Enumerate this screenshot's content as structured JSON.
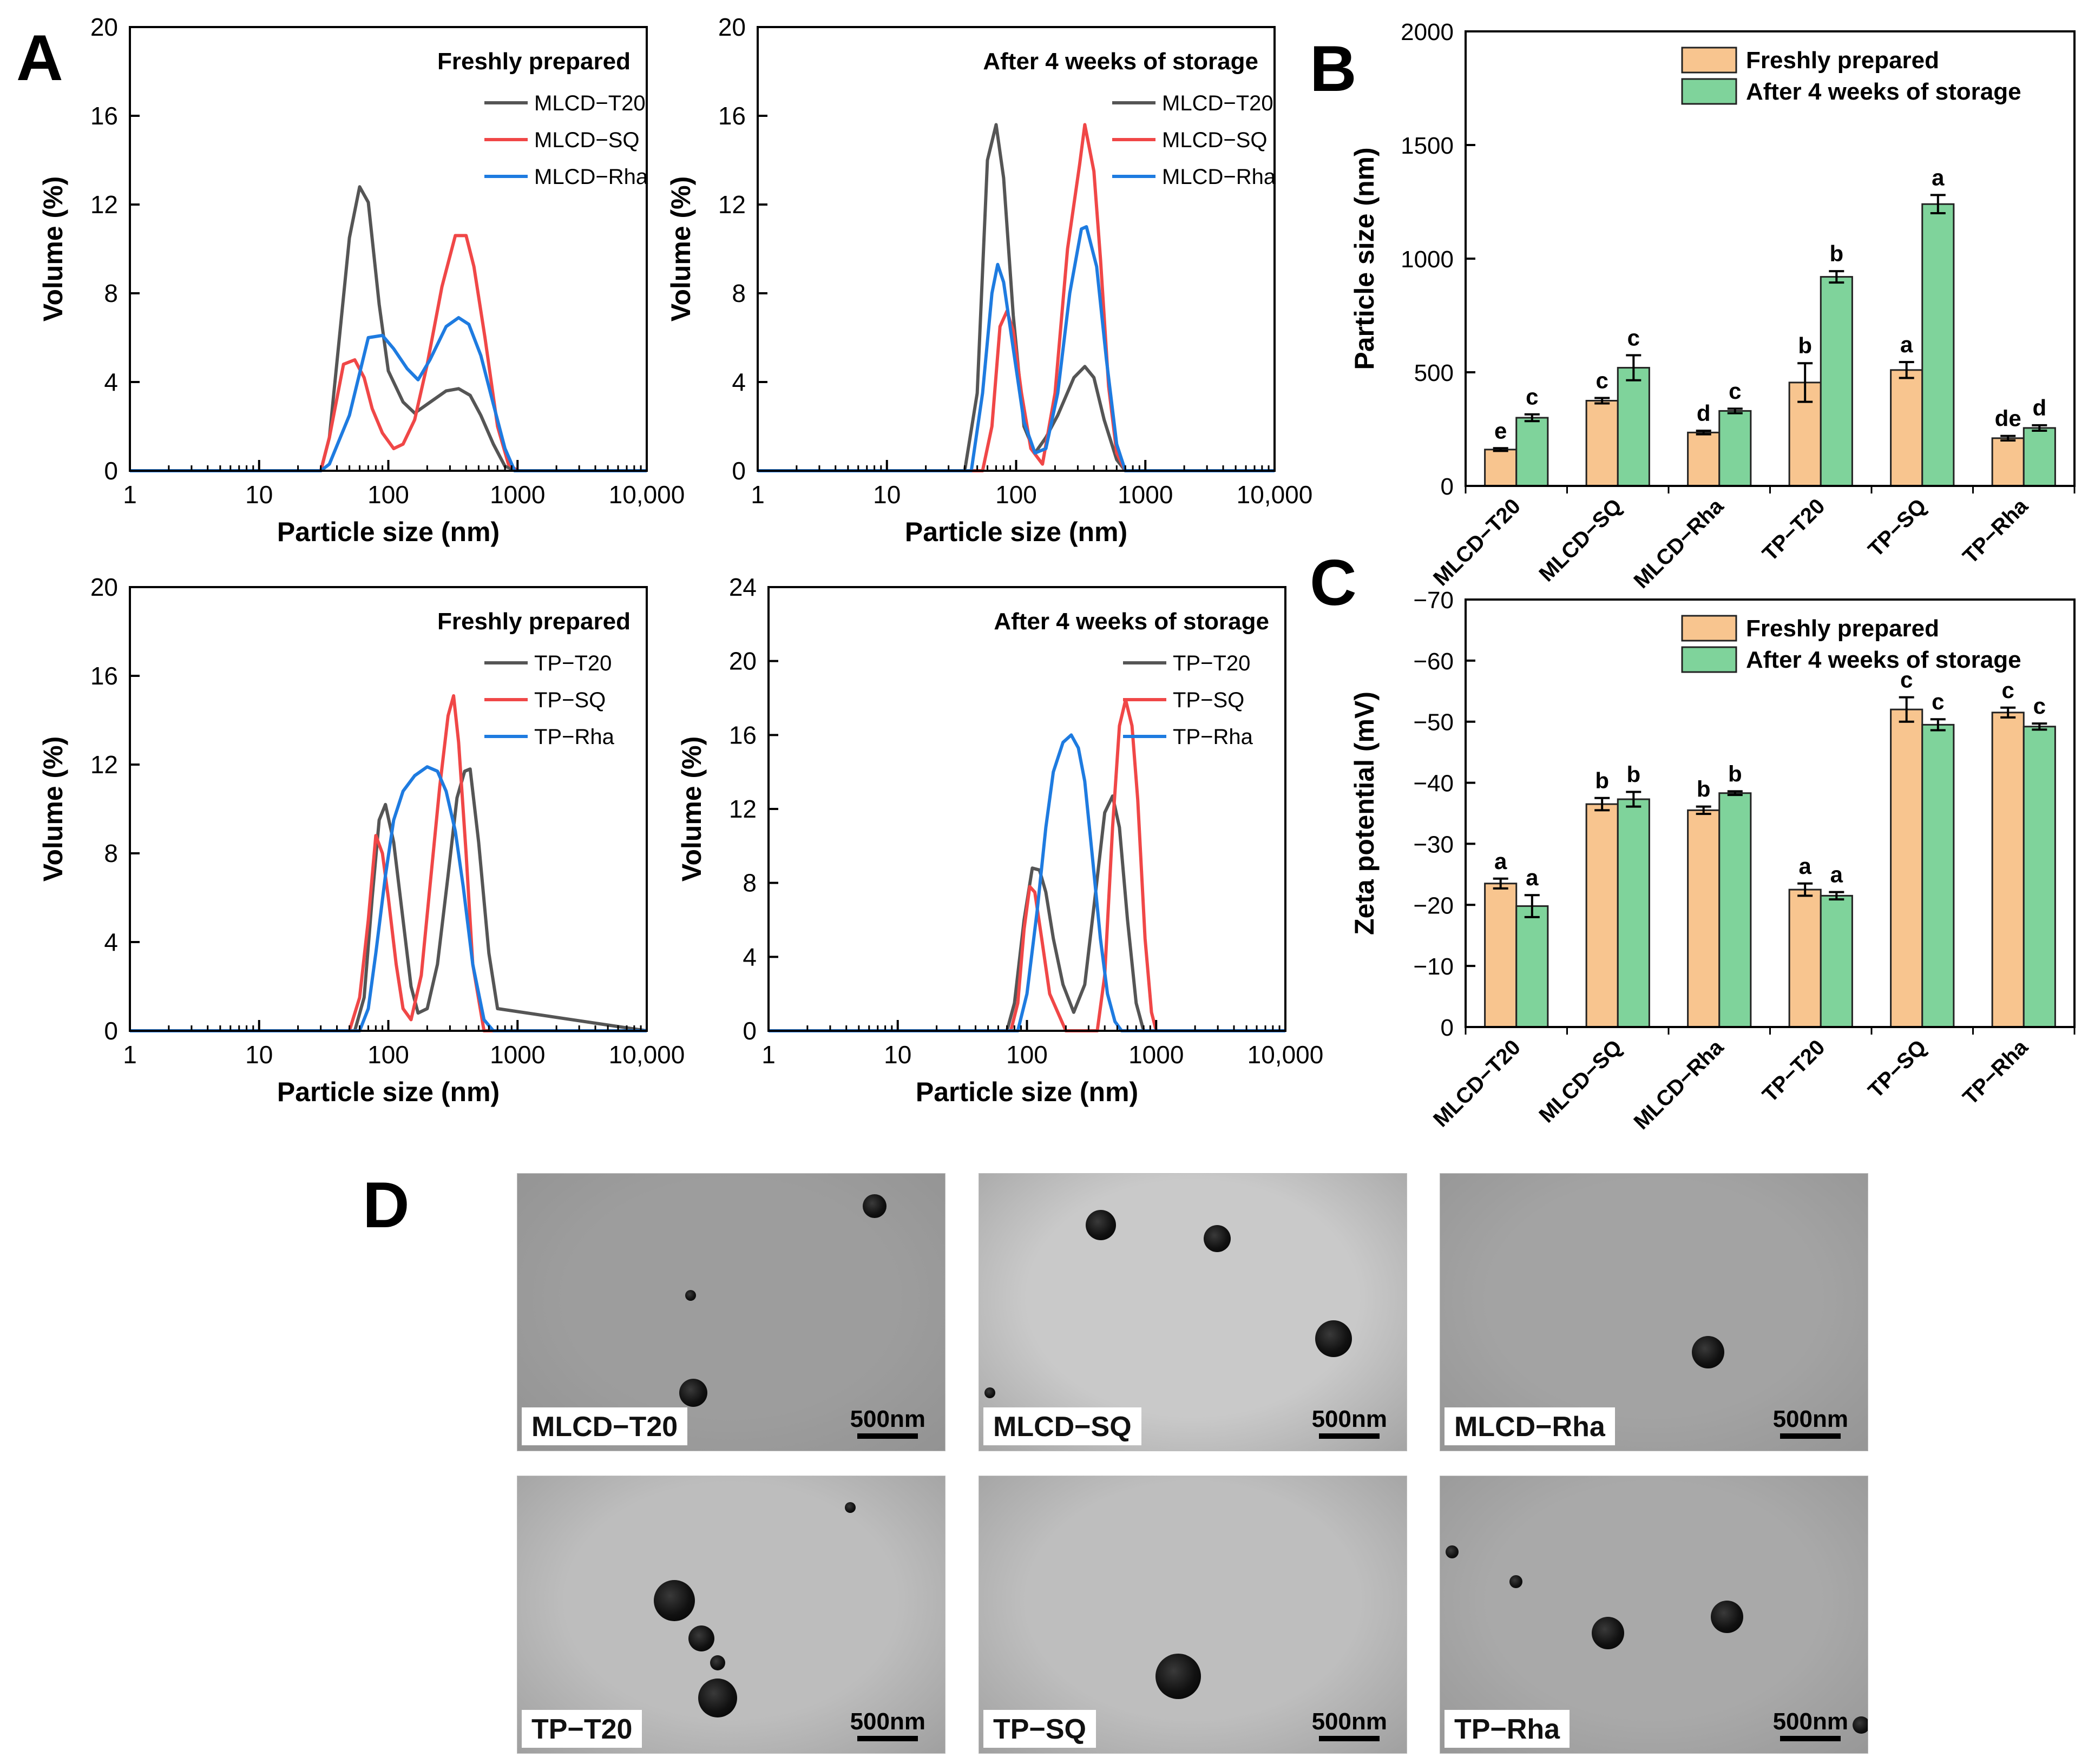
{
  "panel_labels": {
    "A": "A",
    "B": "B",
    "C": "C",
    "D": "D"
  },
  "colors": {
    "gray": "#555555",
    "red": "#f04747",
    "blue": "#1e7be0",
    "orange": "#f8c58f",
    "green": "#7fd39b"
  },
  "chart_data": [
    {
      "id": "A1",
      "type": "line",
      "title": "Freshly prepared",
      "xlabel": "Particle size (nm)",
      "ylabel": "Volume (%)",
      "xscale": "log",
      "xlim": [
        1,
        10000
      ],
      "ylim": [
        0,
        20
      ],
      "xticks": [
        1,
        10,
        100,
        1000,
        10000
      ],
      "xtick_labels": [
        "1",
        "10",
        "100",
        "1000",
        "10,000"
      ],
      "yticks": [
        0,
        4,
        8,
        12,
        16,
        20
      ],
      "legend_position": "top-right",
      "series": [
        {
          "name": "MLCD−T20",
          "color": "#555555",
          "x": [
            1,
            30,
            35,
            50,
            60,
            70,
            85,
            100,
            130,
            160,
            200,
            280,
            350,
            430,
            520,
            650,
            800,
            1000,
            10000
          ],
          "y": [
            0,
            0,
            1.5,
            10.5,
            12.8,
            12.1,
            7.5,
            4.5,
            3.1,
            2.6,
            3.0,
            3.6,
            3.7,
            3.4,
            2.5,
            1.2,
            0.2,
            0,
            0
          ]
        },
        {
          "name": "MLCD−SQ",
          "color": "#f04747",
          "x": [
            1,
            30,
            35,
            45,
            55,
            65,
            75,
            90,
            110,
            130,
            160,
            200,
            260,
            330,
            400,
            460,
            560,
            700,
            850,
            1000,
            10000
          ],
          "y": [
            0,
            0,
            1.5,
            4.8,
            5.0,
            4.2,
            2.8,
            1.7,
            1.0,
            1.2,
            2.3,
            4.8,
            8.3,
            10.6,
            10.6,
            9.2,
            6.0,
            2.0,
            0.3,
            0,
            0
          ]
        },
        {
          "name": "MLCD−Rha",
          "color": "#1e7be0",
          "x": [
            1,
            30,
            35,
            50,
            70,
            90,
            110,
            140,
            170,
            210,
            280,
            350,
            420,
            520,
            650,
            800,
            950,
            10000
          ],
          "y": [
            0,
            0,
            0.3,
            2.5,
            6.0,
            6.1,
            5.5,
            4.6,
            4.1,
            5.0,
            6.5,
            6.9,
            6.6,
            5.2,
            3.0,
            1.0,
            0,
            0
          ]
        }
      ]
    },
    {
      "id": "A2",
      "type": "line",
      "title": "After 4 weeks of storage",
      "xlabel": "Particle size (nm)",
      "ylabel": "Volume (%)",
      "xscale": "log",
      "xlim": [
        1,
        10000
      ],
      "ylim": [
        0,
        20
      ],
      "xticks": [
        1,
        10,
        100,
        1000,
        10000
      ],
      "xtick_labels": [
        "1",
        "10",
        "100",
        "1000",
        "10,000"
      ],
      "yticks": [
        0,
        4,
        8,
        12,
        16,
        20
      ],
      "legend_position": "top-right",
      "series": [
        {
          "name": "MLCD−T20",
          "color": "#555555",
          "x": [
            1,
            40,
            50,
            60,
            70,
            80,
            95,
            115,
            140,
            170,
            210,
            280,
            340,
            400,
            480,
            600,
            700,
            10000
          ],
          "y": [
            0,
            0,
            3.5,
            14.0,
            15.6,
            13.2,
            7.0,
            2.0,
            0.8,
            1.5,
            2.5,
            4.2,
            4.7,
            4.2,
            2.3,
            0.5,
            0,
            0
          ]
        },
        {
          "name": "MLCD−SQ",
          "color": "#f04747",
          "x": [
            1,
            55,
            65,
            75,
            85,
            95,
            110,
            130,
            160,
            200,
            250,
            310,
            340,
            400,
            450,
            520,
            600,
            700,
            10000
          ],
          "y": [
            0,
            0,
            2.0,
            6.5,
            7.2,
            6.3,
            3.5,
            1.0,
            0.3,
            3.5,
            10.0,
            13.8,
            15.6,
            13.5,
            9.5,
            3.8,
            0.8,
            0,
            0
          ]
        },
        {
          "name": "MLCD−Rha",
          "color": "#1e7be0",
          "x": [
            1,
            45,
            55,
            65,
            72,
            80,
            95,
            115,
            140,
            170,
            210,
            260,
            320,
            350,
            420,
            500,
            600,
            700,
            10000
          ],
          "y": [
            0,
            0,
            3.5,
            8.0,
            9.3,
            8.5,
            5.5,
            2.2,
            0.8,
            1.0,
            3.5,
            8.0,
            10.9,
            11.0,
            9.2,
            5.0,
            1.2,
            0,
            0
          ]
        }
      ]
    },
    {
      "id": "A3",
      "type": "line",
      "title": "Freshly prepared",
      "xlabel": "Particle size (nm)",
      "ylabel": "Volume (%)",
      "xscale": "log",
      "xlim": [
        1,
        10000
      ],
      "ylim": [
        0,
        20
      ],
      "xticks": [
        1,
        10,
        100,
        1000,
        10000
      ],
      "xtick_labels": [
        "1",
        "10",
        "100",
        "1000",
        "10,000"
      ],
      "yticks": [
        0,
        4,
        8,
        12,
        16,
        20
      ],
      "legend_position": "top-right",
      "series": [
        {
          "name": "TP−T20",
          "color": "#555555",
          "x": [
            1,
            55,
            65,
            75,
            85,
            95,
            110,
            130,
            150,
            170,
            200,
            240,
            290,
            340,
            390,
            430,
            500,
            600,
            700,
            10000
          ],
          "y": [
            0,
            0,
            1.5,
            6.0,
            9.5,
            10.2,
            8.5,
            5.0,
            2.0,
            0.8,
            1.0,
            3.0,
            7.0,
            10.5,
            11.7,
            11.8,
            8.5,
            3.5,
            1.0,
            0
          ]
        },
        {
          "name": "TP−SQ",
          "color": "#f04747",
          "x": [
            1,
            50,
            60,
            70,
            80,
            90,
            100,
            115,
            130,
            150,
            180,
            210,
            250,
            290,
            320,
            350,
            400,
            450,
            550,
            10000
          ],
          "y": [
            0,
            0,
            1.5,
            5.0,
            8.8,
            8.0,
            6.0,
            3.0,
            1.0,
            0.5,
            2.5,
            6.5,
            11.0,
            14.2,
            15.1,
            13.0,
            8.0,
            3.0,
            0,
            0
          ]
        },
        {
          "name": "TP−Rha",
          "color": "#1e7be0",
          "x": [
            1,
            60,
            70,
            80,
            95,
            110,
            130,
            160,
            200,
            240,
            280,
            330,
            380,
            450,
            550,
            650,
            10000
          ],
          "y": [
            0,
            0,
            1.0,
            3.5,
            7.0,
            9.5,
            10.8,
            11.5,
            11.9,
            11.7,
            10.8,
            9.0,
            6.5,
            3.0,
            0.5,
            0,
            0
          ]
        }
      ]
    },
    {
      "id": "A4",
      "type": "line",
      "title": "After 4 weeks of storage",
      "xlabel": "Particle size (nm)",
      "ylabel": "Volume (%)",
      "xscale": "log",
      "xlim": [
        1,
        10000
      ],
      "ylim": [
        0,
        24
      ],
      "xticks": [
        1,
        10,
        100,
        1000,
        10000
      ],
      "xtick_labels": [
        "1",
        "10",
        "100",
        "1000",
        "10,000"
      ],
      "yticks": [
        0,
        4,
        8,
        12,
        16,
        20,
        24
      ],
      "legend_position": "top-right",
      "series": [
        {
          "name": "TP−T20",
          "color": "#555555",
          "x": [
            1,
            70,
            80,
            95,
            110,
            125,
            140,
            160,
            190,
            230,
            280,
            340,
            400,
            460,
            520,
            600,
            700,
            800,
            10000
          ],
          "y": [
            0,
            0,
            1.5,
            6.0,
            8.8,
            8.7,
            7.5,
            5.0,
            2.5,
            1.0,
            2.5,
            7.5,
            11.8,
            12.7,
            11.0,
            6.0,
            1.5,
            0,
            0
          ]
        },
        {
          "name": "TP−SQ",
          "color": "#f04747",
          "x": [
            1,
            75,
            85,
            95,
            105,
            115,
            130,
            150,
            200,
            350,
            400,
            460,
            520,
            580,
            650,
            720,
            820,
            920,
            1000,
            10000
          ],
          "y": [
            0,
            0,
            1.5,
            5.5,
            7.8,
            7.5,
            5.0,
            2.0,
            0,
            0,
            3.0,
            11.0,
            16.5,
            17.9,
            16.5,
            12.5,
            5.0,
            1.0,
            0,
            0
          ]
        },
        {
          "name": "TP−Rha",
          "color": "#1e7be0",
          "x": [
            1,
            85,
            100,
            120,
            140,
            160,
            190,
            220,
            250,
            280,
            320,
            370,
            420,
            480,
            540,
            10000
          ],
          "y": [
            0,
            0,
            2.0,
            6.5,
            11.0,
            14.0,
            15.6,
            16.0,
            15.3,
            13.5,
            9.5,
            5.0,
            2.0,
            0.5,
            0,
            0
          ]
        }
      ]
    },
    {
      "id": "B",
      "type": "bar",
      "xlabel": "",
      "ylabel": "Particle size (nm)",
      "ylim": [
        0,
        2000
      ],
      "yticks": [
        0,
        500,
        1000,
        1500,
        2000
      ],
      "legend_position": "top",
      "categories": [
        "MLCD−T20",
        "MLCD−SQ",
        "MLCD−Rha",
        "TP−T20",
        "TP−SQ",
        "TP−Rha"
      ],
      "series": [
        {
          "name": "Freshly prepared",
          "color": "#f8c58f",
          "values": [
            160,
            375,
            235,
            455,
            510,
            210
          ],
          "errors": [
            6,
            12,
            8,
            85,
            35,
            10
          ],
          "letters": [
            "e",
            "c",
            "d",
            "b",
            "a",
            "de"
          ]
        },
        {
          "name": "After 4 weeks of storage",
          "color": "#7fd39b",
          "values": [
            300,
            520,
            330,
            920,
            1240,
            255
          ],
          "errors": [
            15,
            55,
            10,
            25,
            40,
            12
          ],
          "letters": [
            "c",
            "c",
            "c",
            "b",
            "a",
            "d"
          ]
        }
      ]
    },
    {
      "id": "C",
      "type": "bar",
      "xlabel": "",
      "ylabel": "Zeta potential (mV)",
      "ylim": [
        0,
        -70
      ],
      "yticks": [
        0,
        -10,
        -20,
        -30,
        -40,
        -50,
        -60,
        -70
      ],
      "ytick_labels": [
        "0",
        "−10",
        "−20",
        "−30",
        "−40",
        "−50",
        "−60",
        "−70"
      ],
      "legend_position": "top",
      "categories": [
        "MLCD−T20",
        "MLCD−SQ",
        "MLCD−Rha",
        "TP−T20",
        "TP−SQ",
        "TP−Rha"
      ],
      "series": [
        {
          "name": "Freshly prepared",
          "color": "#f8c58f",
          "values": [
            -23.5,
            -36.5,
            -35.5,
            -22.5,
            -52.0,
            -51.5
          ],
          "errors": [
            0.8,
            1.0,
            0.6,
            1.0,
            2.0,
            0.8
          ],
          "letters": [
            "a",
            "b",
            "b",
            "a",
            "c",
            "c"
          ]
        },
        {
          "name": "After 4 weeks of storage",
          "color": "#7fd39b",
          "values": [
            -19.8,
            -37.3,
            -38.3,
            -21.5,
            -49.5,
            -49.2
          ],
          "errors": [
            1.8,
            1.2,
            0.3,
            0.6,
            0.9,
            0.5
          ],
          "letters": [
            "a",
            "b",
            "b",
            "a",
            "c",
            "c"
          ]
        }
      ]
    }
  ],
  "tem_panels": [
    {
      "label": "MLCD−T20",
      "scale": "500nm"
    },
    {
      "label": "MLCD−SQ",
      "scale": "500nm"
    },
    {
      "label": "MLCD−Rha",
      "scale": "500nm"
    },
    {
      "label": "TP−T20",
      "scale": "500nm"
    },
    {
      "label": "TP−SQ",
      "scale": "500nm"
    },
    {
      "label": "TP−Rha",
      "scale": "500nm"
    }
  ]
}
